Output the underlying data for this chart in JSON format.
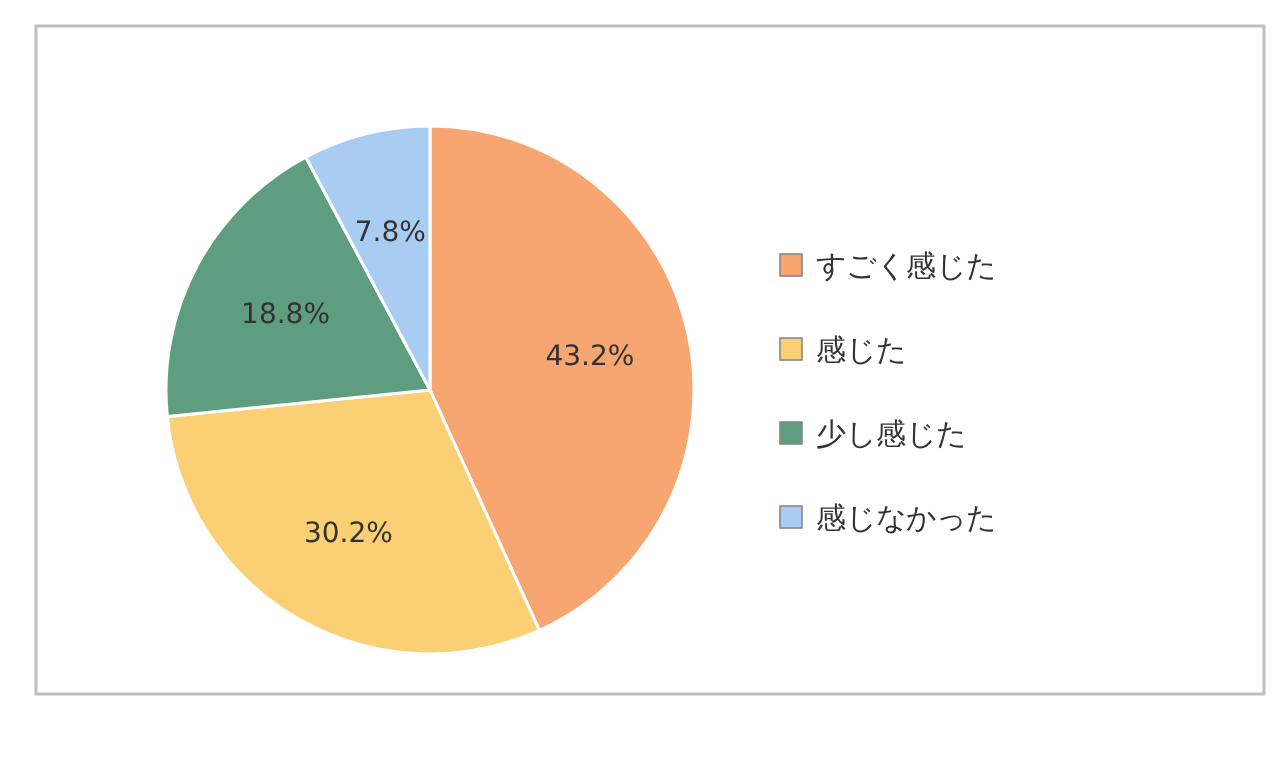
{
  "chart_data": {
    "type": "pie",
    "categories": [
      "すごく感じた",
      "感じた",
      "少し感じた",
      "感じなかった"
    ],
    "values": [
      43.2,
      30.2,
      18.8,
      7.8
    ],
    "value_labels": [
      "43.2%",
      "30.2%",
      "18.8%",
      "7.8%"
    ],
    "colors": [
      "#f7a672",
      "#fbcf74",
      "#5e9e7e",
      "#a9cdf2"
    ],
    "legend": "right"
  }
}
